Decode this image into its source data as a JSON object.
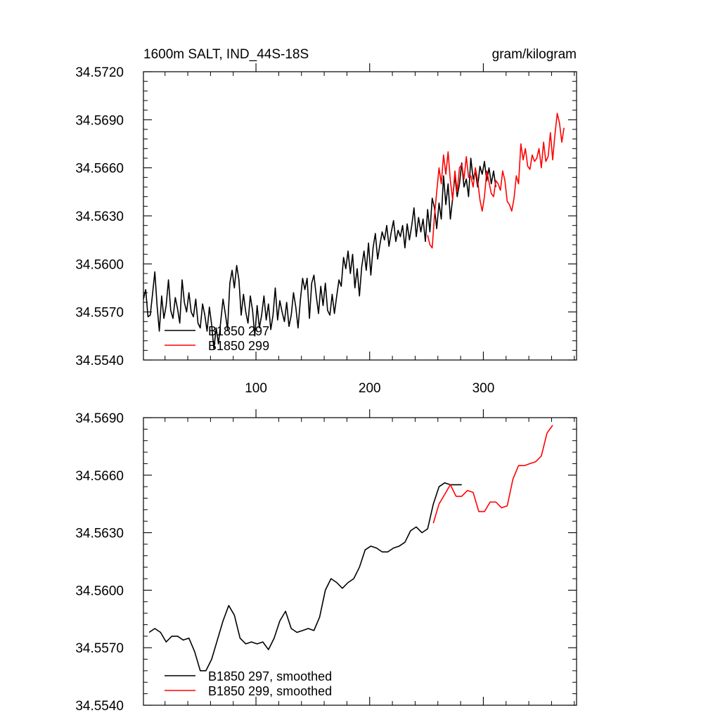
{
  "chart_data": [
    {
      "type": "line",
      "title_left": "1600m SALT, IND_44S-18S",
      "title_right": "gram/kilogram",
      "xlim": [
        1,
        382
      ],
      "ylim": [
        34.554,
        34.572
      ],
      "yticks": [
        "34.5540",
        "34.5570",
        "34.5600",
        "34.5630",
        "34.5660",
        "34.5690",
        "34.5720"
      ],
      "xticks": [
        "100",
        "200",
        "300"
      ],
      "legend_position": "bottom-left",
      "series": [
        {
          "name": "B1850 297",
          "color": "#000000",
          "x_start": 1,
          "x_step": 2,
          "values": [
            34.5578,
            34.5584,
            34.5567,
            34.5568,
            34.5581,
            34.5595,
            34.5574,
            34.5558,
            34.558,
            34.5566,
            34.5574,
            34.559,
            34.5571,
            34.5566,
            34.5579,
            34.5572,
            34.5563,
            34.559,
            34.5576,
            34.557,
            34.5582,
            34.557,
            34.5567,
            34.5578,
            34.5563,
            34.556,
            34.5575,
            34.5568,
            34.5558,
            34.5573,
            34.5562,
            34.5547,
            34.556,
            34.555,
            34.5564,
            34.5578,
            34.5569,
            34.5559,
            34.5588,
            34.5596,
            34.5585,
            34.5599,
            34.559,
            34.5568,
            34.5581,
            34.557,
            34.5563,
            34.558,
            34.5571,
            34.5555,
            34.5574,
            34.556,
            34.5568,
            34.558,
            34.5565,
            34.5575,
            34.5559,
            34.5568,
            34.5585,
            34.5565,
            34.5577,
            34.557,
            34.5564,
            34.5576,
            34.5561,
            34.5568,
            34.5582,
            34.5573,
            34.556,
            34.5577,
            34.5591,
            34.5584,
            34.5591,
            34.5566,
            34.5588,
            34.5593,
            34.558,
            34.5569,
            34.5586,
            34.5574,
            34.5588,
            34.5571,
            34.5568,
            34.5581,
            34.5569,
            34.558,
            34.559,
            34.5586,
            34.5604,
            34.5597,
            34.5608,
            34.5594,
            34.5606,
            34.5585,
            34.5597,
            34.558,
            34.5598,
            34.5608,
            34.5596,
            34.5613,
            34.5593,
            34.561,
            34.5619,
            34.5603,
            34.5612,
            34.562,
            34.5615,
            34.5624,
            34.5611,
            34.562,
            34.5627,
            34.5614,
            34.5621,
            34.5617,
            34.5624,
            34.561,
            34.5625,
            34.5615,
            34.5624,
            34.5635,
            34.5617,
            34.5629,
            34.562,
            34.5628,
            34.5614,
            34.5634,
            34.562,
            34.5641,
            34.5635,
            34.5622,
            34.5638,
            34.5628,
            34.5655,
            34.5637,
            34.565,
            34.5628,
            34.5641,
            34.5655,
            34.5642,
            34.565,
            34.5663,
            34.5648,
            34.5653,
            34.5642,
            34.5666,
            34.5653,
            34.5658,
            34.5648,
            34.5661,
            34.5656,
            34.5664,
            34.5652,
            34.566,
            34.565,
            34.5658,
            34.5648
          ]
        },
        {
          "name": "B1850 299",
          "color": "#ff0000",
          "x_start": 251,
          "x_step": 2,
          "values": [
            34.5618,
            34.5612,
            34.561,
            34.563,
            34.5645,
            34.566,
            34.565,
            34.5668,
            34.5656,
            34.567,
            34.5652,
            34.564,
            34.5658,
            34.5645,
            34.566,
            34.5662,
            34.5653,
            34.5667,
            34.5654,
            34.5655,
            34.5648,
            34.566,
            34.5652,
            34.564,
            34.5633,
            34.5642,
            34.5658,
            34.5651,
            34.5644,
            34.5642,
            34.5652,
            34.565,
            34.5646,
            34.5658,
            34.5652,
            34.5639,
            34.5637,
            34.5633,
            34.5641,
            34.5655,
            34.565,
            34.5675,
            34.5665,
            34.5672,
            34.5661,
            34.5659,
            34.5668,
            34.5664,
            34.5666,
            34.5672,
            34.566,
            34.5676,
            34.5664,
            34.5667,
            34.5682,
            34.5665,
            34.5681,
            34.5694,
            34.5688,
            34.5676,
            34.5685
          ]
        }
      ]
    },
    {
      "type": "line",
      "xlim": [
        1,
        382
      ],
      "ylim": [
        34.554,
        34.569
      ],
      "yticks": [
        "34.5540",
        "34.5570",
        "34.5600",
        "34.5630",
        "34.5660",
        "34.5690"
      ],
      "legend_position": "bottom-left",
      "series": [
        {
          "name": "B1850 297, smoothed",
          "color": "#000000",
          "x_start": 6,
          "x_step": 5,
          "values": [
            34.5578,
            34.558,
            34.5578,
            34.5573,
            34.5576,
            34.5576,
            34.5574,
            34.5575,
            34.5568,
            34.5558,
            34.5558,
            34.5564,
            34.5574,
            34.5584,
            34.5592,
            34.5587,
            34.5575,
            34.5572,
            34.5573,
            34.5572,
            34.5573,
            34.5569,
            34.5575,
            34.5584,
            34.5589,
            34.558,
            34.5578,
            34.5579,
            34.558,
            34.5579,
            34.5586,
            34.56,
            34.5606,
            34.5604,
            34.5601,
            34.5604,
            34.5606,
            34.5612,
            34.5621,
            34.5623,
            34.5622,
            34.562,
            34.562,
            34.5622,
            34.5623,
            34.5625,
            34.5631,
            34.5633,
            34.563,
            34.5632,
            34.5645,
            34.5654,
            34.5656,
            34.5655,
            34.5655,
            34.5655
          ]
        },
        {
          "name": "B1850 299, smoothed",
          "color": "#ff0000",
          "x_start": 256,
          "x_step": 5,
          "values": [
            34.5635,
            34.5645,
            34.565,
            34.5655,
            34.5649,
            34.5649,
            34.5652,
            34.5651,
            34.5641,
            34.5641,
            34.5646,
            34.5646,
            34.5643,
            34.5644,
            34.5658,
            34.5665,
            34.5665,
            34.5666,
            34.5667,
            34.567,
            34.5682,
            34.5686
          ]
        }
      ]
    }
  ]
}
